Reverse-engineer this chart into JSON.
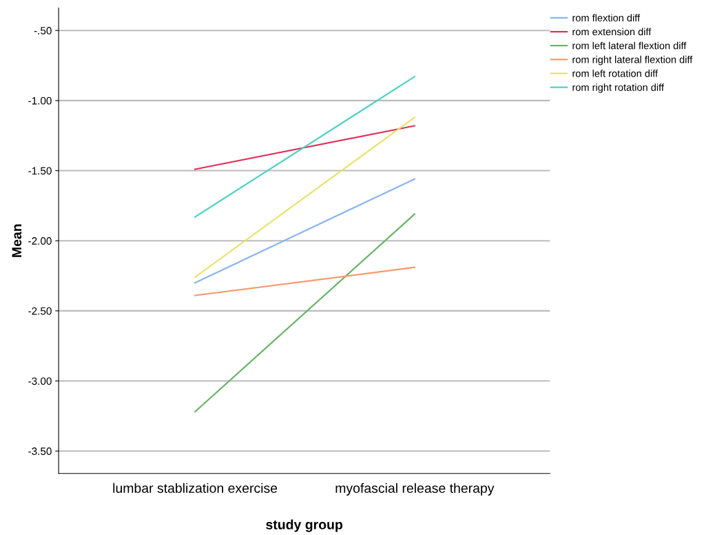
{
  "chart_data": {
    "type": "line",
    "xlabel": "study group",
    "ylabel": "Mean",
    "categories": [
      "lumbar stablization exercise",
      "myofascial release therapy"
    ],
    "series": [
      {
        "name": "rom flextion diff",
        "color": "#8ab4f0",
        "values": [
          -2.3,
          -1.56
        ]
      },
      {
        "name": "rom extension diff",
        "color": "#e0305a",
        "values": [
          -1.49,
          -1.18
        ]
      },
      {
        "name": "rom left lateral flextion diff",
        "color": "#6ab36a",
        "values": [
          -3.22,
          -1.81
        ]
      },
      {
        "name": "rom right lateral flextion diff",
        "color": "#f79a6a",
        "values": [
          -2.39,
          -2.19
        ]
      },
      {
        "name": "rom left rotation diff",
        "color": "#e8e26a",
        "values": [
          -2.26,
          -1.12
        ]
      },
      {
        "name": "rom right rotation diff",
        "color": "#4fd0c4",
        "values": [
          -1.83,
          -0.83
        ]
      }
    ],
    "ylim": [
      -3.66,
      -0.34
    ],
    "yticks": [
      {
        "value": -0.5,
        "label": "-.50"
      },
      {
        "value": -1.0,
        "label": "-1.00"
      },
      {
        "value": -1.5,
        "label": "-1.50"
      },
      {
        "value": -2.0,
        "label": "-2.00"
      },
      {
        "value": -2.5,
        "label": "-2.50"
      },
      {
        "value": -3.0,
        "label": "-3.00"
      },
      {
        "value": -3.5,
        "label": "-3.50"
      }
    ],
    "grid": "y",
    "legend": "top right",
    "marker": "none",
    "line_style": "solid"
  }
}
